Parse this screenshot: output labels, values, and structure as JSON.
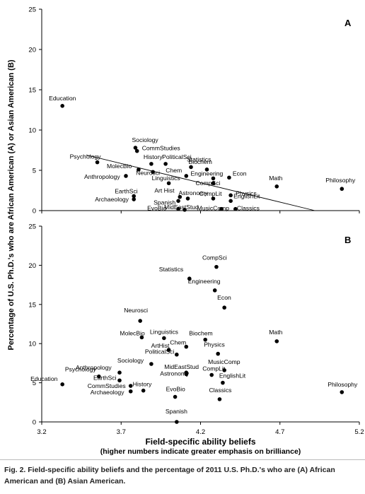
{
  "chart_data": {
    "type": "scatter",
    "ylabel": "Percentage of U.S. Ph.D.'s who are African American (A) or Asian American (B)",
    "xlabel": "Field-specific ability beliefs",
    "xlabel_sub": "(higher numbers indicate greater emphasis on brilliance)",
    "xlim": [
      3.2,
      5.2
    ],
    "xticks": [
      "3.2",
      "3.7",
      "4.2",
      "4.7",
      "5.2"
    ],
    "xtick_values": [
      3.2,
      3.7,
      4.2,
      4.7,
      5.2
    ],
    "grid": false,
    "panels": [
      {
        "letter": "A",
        "ylim": [
          0,
          25
        ],
        "yticks": [
          "0",
          "5",
          "10",
          "15",
          "20",
          "25"
        ],
        "ytick_values": [
          0,
          5,
          10,
          15,
          20,
          25
        ],
        "trendline": {
          "x": [
            3.48,
            4.92
          ],
          "y": [
            6.9,
            0.0
          ]
        },
        "points": [
          {
            "label": "Education",
            "x": 3.33,
            "y": 13.0
          },
          {
            "label": "Psychology",
            "x": 3.55,
            "y": 6.0
          },
          {
            "label": "Anthropology",
            "x": 3.73,
            "y": 4.3
          },
          {
            "label": "Neurosci",
            "x": 3.9,
            "y": 4.8
          },
          {
            "label": "MolecBio",
            "x": 3.81,
            "y": 5.1
          },
          {
            "label": "Sociology",
            "x": 3.79,
            "y": 7.8
          },
          {
            "label": "CommStudies",
            "x": 3.8,
            "y": 7.4
          },
          {
            "label": "History",
            "x": 3.89,
            "y": 5.8
          },
          {
            "label": "PoliticalSci",
            "x": 3.98,
            "y": 5.8
          },
          {
            "label": "EarthSci",
            "x": 3.78,
            "y": 1.8
          },
          {
            "label": "Archaeology",
            "x": 3.78,
            "y": 1.4
          },
          {
            "label": "Linguistics",
            "x": 4.0,
            "y": 3.4
          },
          {
            "label": "Art Hist",
            "x": 4.07,
            "y": 1.7
          },
          {
            "label": "Spanish",
            "x": 4.06,
            "y": 1.2
          },
          {
            "label": "EvoBio",
            "x": 4.06,
            "y": 0.2
          },
          {
            "label": "MidEastStud",
            "x": 4.1,
            "y": 0.1
          },
          {
            "label": "Astronomy",
            "x": 4.12,
            "y": 1.5
          },
          {
            "label": "Chem",
            "x": 4.11,
            "y": 4.3
          },
          {
            "label": "Statistics",
            "x": 4.14,
            "y": 5.4
          },
          {
            "label": "Biochem",
            "x": 4.24,
            "y": 5.1
          },
          {
            "label": "Engineering",
            "x": 4.28,
            "y": 4.0
          },
          {
            "label": "CompSci",
            "x": 4.28,
            "y": 3.4
          },
          {
            "label": "Econ",
            "x": 4.38,
            "y": 4.1
          },
          {
            "label": "CompLit",
            "x": 4.28,
            "y": 1.5
          },
          {
            "label": "Physics",
            "x": 4.39,
            "y": 1.9
          },
          {
            "label": "EnglishLit",
            "x": 4.39,
            "y": 1.2
          },
          {
            "label": "MusicComp",
            "x": 4.33,
            "y": 0.2
          },
          {
            "label": "Classics",
            "x": 4.42,
            "y": 0.2
          },
          {
            "label": "Math",
            "x": 4.68,
            "y": 3.0
          },
          {
            "label": "Philosophy",
            "x": 5.09,
            "y": 2.7
          }
        ]
      },
      {
        "letter": "B",
        "ylim": [
          0,
          25
        ],
        "yticks": [
          "0",
          "5",
          "10",
          "15",
          "20",
          "25"
        ],
        "ytick_values": [
          0,
          5,
          10,
          15,
          20,
          25
        ],
        "points": [
          {
            "label": "CompSci",
            "x": 4.3,
            "y": 19.8
          },
          {
            "label": "Statistics",
            "x": 4.13,
            "y": 18.3
          },
          {
            "label": "Engineering",
            "x": 4.29,
            "y": 16.8
          },
          {
            "label": "Econ",
            "x": 4.35,
            "y": 14.6
          },
          {
            "label": "Neurosci",
            "x": 3.82,
            "y": 12.9
          },
          {
            "label": "Math",
            "x": 4.68,
            "y": 10.3
          },
          {
            "label": "MolecBio",
            "x": 3.83,
            "y": 10.8
          },
          {
            "label": "Linguistics",
            "x": 3.97,
            "y": 10.7
          },
          {
            "label": "Biochem",
            "x": 4.23,
            "y": 10.5
          },
          {
            "label": "Chem",
            "x": 4.11,
            "y": 9.6
          },
          {
            "label": "ArtHist",
            "x": 4.0,
            "y": 9.2
          },
          {
            "label": "Physics",
            "x": 4.31,
            "y": 8.7
          },
          {
            "label": "PoliticalSci",
            "x": 4.05,
            "y": 8.6
          },
          {
            "label": "MusicComp",
            "x": 4.35,
            "y": 6.6
          },
          {
            "label": "Anthropology",
            "x": 3.69,
            "y": 6.3
          },
          {
            "label": "Sociology",
            "x": 3.89,
            "y": 7.4
          },
          {
            "label": "MidEastStud",
            "x": 4.11,
            "y": 6.3
          },
          {
            "label": "CompLit",
            "x": 4.27,
            "y": 6.0
          },
          {
            "label": "EnglishLit",
            "x": 4.34,
            "y": 5.0
          },
          {
            "label": "Psychology",
            "x": 3.56,
            "y": 5.8
          },
          {
            "label": "Education",
            "x": 3.33,
            "y": 4.8
          },
          {
            "label": "EarthSci",
            "x": 3.69,
            "y": 5.3
          },
          {
            "label": "Astronomy",
            "x": 4.11,
            "y": 6.1
          },
          {
            "label": "CommStudies",
            "x": 3.76,
            "y": 4.6
          },
          {
            "label": "History",
            "x": 3.84,
            "y": 4.0
          },
          {
            "label": "Archaeology",
            "x": 3.76,
            "y": 3.9
          },
          {
            "label": "EvoBio",
            "x": 4.04,
            "y": 3.2
          },
          {
            "label": "Classics",
            "x": 4.32,
            "y": 2.9
          },
          {
            "label": "Philosophy",
            "x": 5.09,
            "y": 3.8
          },
          {
            "label": "Spanish",
            "x": 4.05,
            "y": 0.0
          }
        ]
      }
    ]
  },
  "caption": {
    "lead": "Fig. 2.",
    "text": "Field-specific ability beliefs and the percentage of 2011 U.S. Ph.D.'s who are (A) African American and (B) Asian American."
  }
}
